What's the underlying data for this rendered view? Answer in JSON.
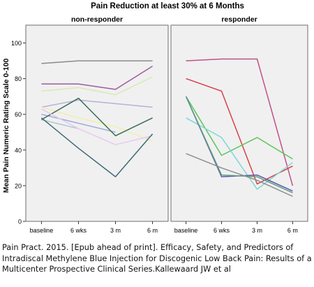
{
  "chart_data": {
    "type": "line",
    "title": "Pain Reduction at least 30% at 6 Months",
    "ylabel": "Mean Pain Numeric Rating Scale 0-100",
    "xlabel": "",
    "categories": [
      "baseline",
      "6 wks",
      "3 m",
      "6 m"
    ],
    "ylim": [
      0,
      110
    ],
    "yticks": [
      0,
      20,
      40,
      60,
      80,
      100
    ],
    "grid": false,
    "legend": "none",
    "panels": [
      {
        "title": "non-responder",
        "series": [
          {
            "color": "#8a8a8a",
            "values": [
              88.5,
              90,
              90,
              90
            ]
          },
          {
            "color": "#9f5a9f",
            "values": [
              77,
              77,
              74,
              87
            ]
          },
          {
            "color": "#d9e9b3",
            "values": [
              73,
              75,
              71,
              81
            ]
          },
          {
            "color": "#b3b3d9",
            "values": [
              64,
              68,
              66,
              64
            ]
          },
          {
            "color": "#f2efa8",
            "values": [
              64,
              58,
              53,
              45
            ]
          },
          {
            "color": "#a9c7d4",
            "values": [
              57,
              52,
              null,
              null
            ]
          },
          {
            "color": "#9ea8d9",
            "values": [
              60,
              55,
              50,
              null
            ]
          },
          {
            "color": "#3a6e57",
            "values": [
              57,
              69,
              48,
              58
            ]
          },
          {
            "color": "#e9c8ef",
            "values": [
              63,
              52,
              43,
              48
            ]
          },
          {
            "color": "#3e6b78",
            "values": [
              58,
              41,
              25,
              49
            ]
          }
        ]
      },
      {
        "title": "responder",
        "series": [
          {
            "color": "#c0508a",
            "values": [
              90,
              91,
              91,
              20
            ]
          },
          {
            "color": "#d8404a",
            "values": [
              80,
              73,
              21,
              31
            ]
          },
          {
            "color": "#5cc45c",
            "values": [
              70,
              37,
              47,
              35
            ]
          },
          {
            "color": "#7fd6d6",
            "values": [
              58,
              47,
              18,
              33
            ]
          },
          {
            "color": "#5a5aa8",
            "values": [
              70,
              25,
              26,
              17
            ]
          },
          {
            "color": "#5f9c84",
            "values": [
              70,
              26,
              25,
              16
            ]
          },
          {
            "color": "#8f8f8f",
            "values": [
              38,
              30,
              23,
              14
            ]
          }
        ]
      }
    ]
  },
  "caption": "Pain Pract. 2015. [Epub ahead of print]. Efficacy, Safety, and Predictors of Intradiscal Methylene Blue Injection for Discogenic Low Back Pain: Results of a Multicenter Prospective Clinical Series.Kallewaard JW et al"
}
